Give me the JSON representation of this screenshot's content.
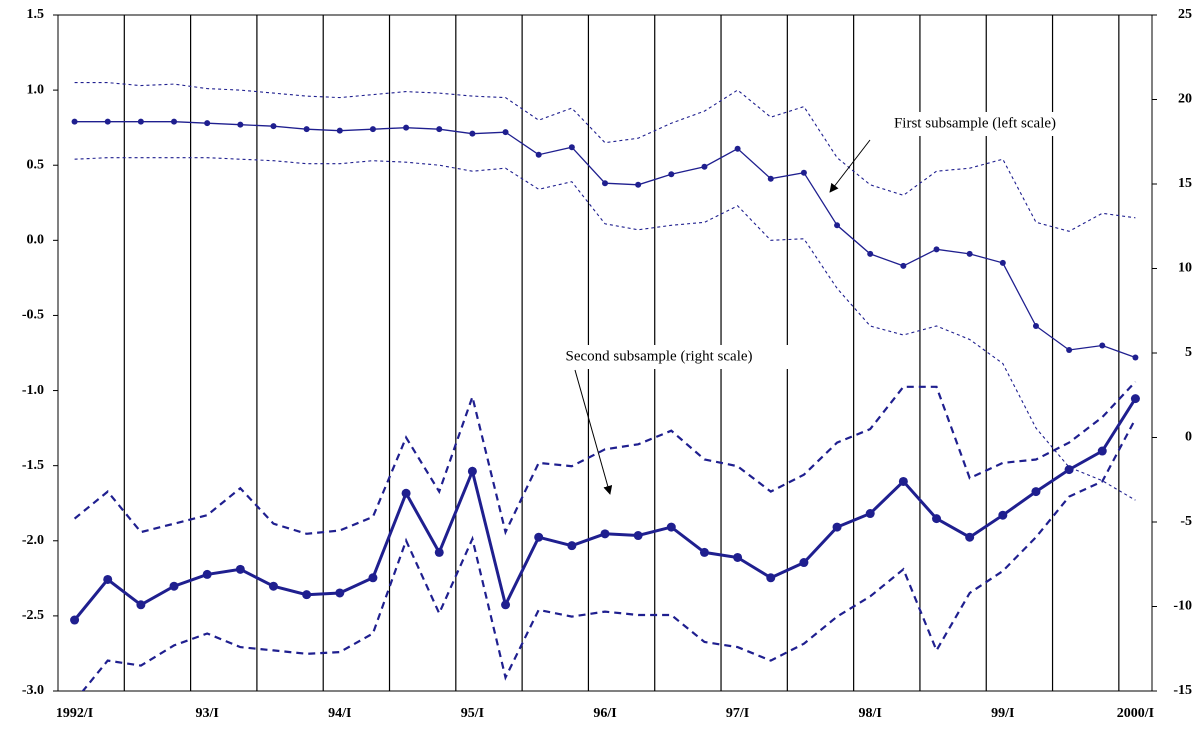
{
  "chart_data": {
    "type": "line",
    "categories": [
      "1992/I",
      null,
      null,
      null,
      "93/I",
      null,
      null,
      null,
      "94/I",
      null,
      null,
      null,
      "95/I",
      null,
      null,
      null,
      "96/I",
      null,
      null,
      null,
      "97/I",
      null,
      null,
      null,
      "98/I",
      null,
      null,
      null,
      "99/I",
      null,
      null,
      null,
      "2000/I"
    ],
    "ylim": [
      -3.0,
      1.5
    ],
    "yticks": [
      {
        "value": -3.0,
        "label": "-3.0"
      },
      -2.5,
      {
        "value": -2.0,
        "label": "-2.0"
      },
      -1.5,
      {
        "value": -1.0,
        "label": "-1.0"
      },
      -0.5,
      {
        "value": 0,
        "label": "0.0"
      },
      0.5,
      {
        "value": 1.0,
        "label": "1.0"
      },
      1.5
    ],
    "y2lim": [
      -15,
      25
    ],
    "y2ticks": [
      -15,
      -10,
      -5,
      0,
      5,
      10,
      15,
      20,
      25
    ],
    "series": [
      {
        "color": "#1f1f8f",
        "axis": "y",
        "dash": "solid",
        "width": 1.3,
        "markers": 3,
        "values": [
          0.79,
          0.79,
          0.79,
          0.79,
          0.78,
          0.77,
          0.76,
          0.74,
          0.73,
          0.74,
          0.75,
          0.74,
          0.71,
          0.72,
          0.57,
          0.62,
          0.38,
          0.37,
          0.44,
          0.49,
          0.61,
          0.41,
          0.45,
          0.1,
          -0.09,
          -0.17,
          -0.06,
          -0.09,
          -0.15,
          -0.57,
          -0.73,
          -0.7,
          -0.78
        ]
      },
      {
        "color": "#1f1f8f",
        "axis": "y",
        "dash": "dotted",
        "width": 1.1,
        "markers": 0,
        "values": [
          1.05,
          1.05,
          1.03,
          1.04,
          1.01,
          1.0,
          0.98,
          0.96,
          0.95,
          0.97,
          0.99,
          0.98,
          0.96,
          0.95,
          0.8,
          0.88,
          0.65,
          0.68,
          0.78,
          0.86,
          1.0,
          0.82,
          0.89,
          0.55,
          0.37,
          0.3,
          0.46,
          0.48,
          0.54,
          0.12,
          0.06,
          0.18,
          0.15
        ]
      },
      {
        "color": "#1f1f8f",
        "axis": "y",
        "dash": "dotted",
        "width": 1.1,
        "markers": 0,
        "values": [
          0.54,
          0.55,
          0.55,
          0.55,
          0.55,
          0.54,
          0.53,
          0.51,
          0.51,
          0.53,
          0.52,
          0.5,
          0.46,
          0.48,
          0.34,
          0.39,
          0.11,
          0.07,
          0.1,
          0.12,
          0.23,
          0.0,
          0.01,
          -0.32,
          -0.57,
          -0.63,
          -0.57,
          -0.66,
          -0.82,
          -1.25,
          -1.51,
          -1.6,
          -1.73
        ]
      },
      {
        "color": "#1f1f8f",
        "axis": "y2",
        "dash": "solid",
        "width": 3,
        "markers": 4.5,
        "values": [
          -10.8,
          -8.4,
          -9.9,
          -8.8,
          -8.1,
          -7.8,
          -8.8,
          -9.3,
          -9.2,
          -8.3,
          -3.3,
          -6.8,
          -2.0,
          -9.9,
          -5.9,
          -6.4,
          -5.7,
          -5.8,
          -5.3,
          -6.8,
          -7.1,
          -8.3,
          -7.4,
          -5.3,
          -4.5,
          -2.6,
          -4.8,
          -5.9,
          -4.6,
          -3.2,
          -1.9,
          -0.8,
          2.3
        ]
      },
      {
        "color": "#1f1f8f",
        "axis": "y2",
        "dash": "dashed",
        "width": 2.2,
        "markers": 0,
        "values": [
          -4.8,
          -3.2,
          -5.6,
          -5.1,
          -4.6,
          -3.0,
          -5.1,
          -5.7,
          -5.5,
          -4.7,
          0.0,
          -3.2,
          2.4,
          -5.6,
          -1.5,
          -1.7,
          -0.7,
          -0.4,
          0.4,
          -1.3,
          -1.7,
          -3.2,
          -2.2,
          -0.3,
          0.5,
          3.0,
          3.0,
          -2.4,
          -1.5,
          -1.3,
          -0.3,
          1.2,
          3.3
        ]
      },
      {
        "color": "#1f1f8f",
        "axis": "y2",
        "dash": "dashed",
        "width": 2.2,
        "markers": 0,
        "values": [
          -15.6,
          -13.2,
          -13.5,
          -12.3,
          -11.6,
          -12.4,
          -12.6,
          -12.8,
          -12.7,
          -11.6,
          -6.1,
          -10.4,
          -6.0,
          -14.2,
          -10.2,
          -10.6,
          -10.3,
          -10.5,
          -10.5,
          -12.1,
          -12.4,
          -13.2,
          -12.2,
          -10.6,
          -9.4,
          -7.8,
          -12.6,
          -9.2,
          -7.9,
          -5.9,
          -3.5,
          -2.6,
          1.1
        ]
      }
    ],
    "annotations": [
      "First subsample (left scale)",
      "Second subsample (right scale)"
    ]
  }
}
